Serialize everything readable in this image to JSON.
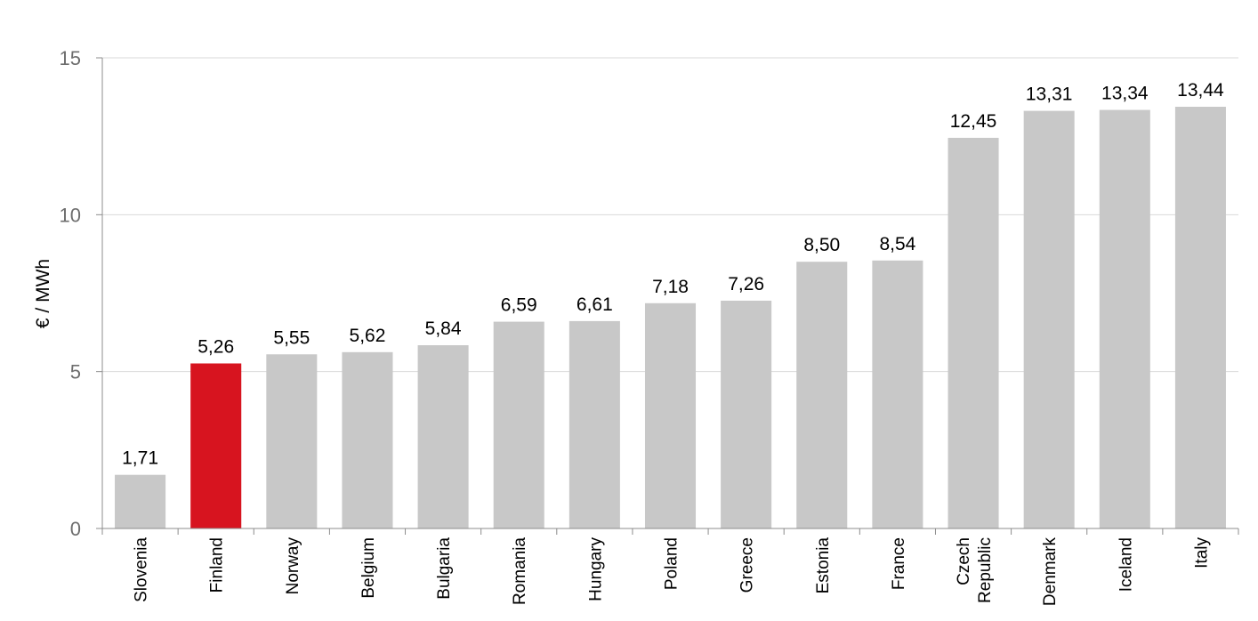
{
  "chart_data": {
    "type": "bar",
    "title": "",
    "xlabel": "",
    "ylabel": "€ / MWh",
    "ylim": [
      0,
      15
    ],
    "yticks": [
      "0",
      "5",
      "10",
      "15"
    ],
    "ytick_values": [
      0,
      5,
      10,
      15
    ],
    "grid": true,
    "categories": [
      [
        "Slovenia"
      ],
      [
        "Finland"
      ],
      [
        "Norway"
      ],
      [
        "Belgium"
      ],
      [
        "Bulgaria"
      ],
      [
        "Romania"
      ],
      [
        "Hungary"
      ],
      [
        "Poland"
      ],
      [
        "Greece"
      ],
      [
        "Estonia"
      ],
      [
        "France"
      ],
      [
        "Czech",
        "Republic"
      ],
      [
        "Denmark"
      ],
      [
        "Iceland"
      ],
      [
        "Italy"
      ]
    ],
    "values": [
      1.71,
      5.26,
      5.55,
      5.62,
      5.84,
      6.59,
      6.61,
      7.18,
      7.26,
      8.5,
      8.54,
      12.45,
      13.31,
      13.34,
      13.44
    ],
    "value_labels": [
      "1,71",
      "5,26",
      "5,55",
      "5,62",
      "5,84",
      "6,59",
      "6,61",
      "7,18",
      "7,26",
      "8,50",
      "8,54",
      "12,45",
      "13,31",
      "13,34",
      "13,44"
    ],
    "highlight_index": 1,
    "colors": {
      "bar": "#c8c8c8",
      "highlight": "#d7141f",
      "grid": "#d9d9d9",
      "axis": "#8c8c8c"
    }
  }
}
